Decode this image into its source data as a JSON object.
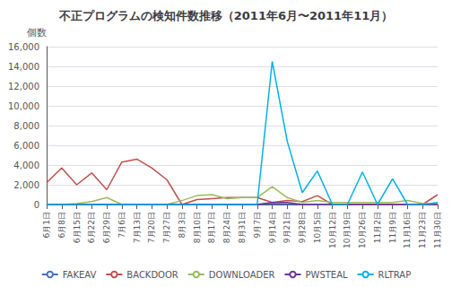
{
  "chart_data": {
    "type": "line",
    "title": "不正プログラムの検知件数推移（2011年6月〜2011年11月）",
    "ylabel": "個数",
    "categories": [
      "6月1日",
      "6月8日",
      "6月15日",
      "6月22日",
      "6月29日",
      "7月6日",
      "7月13日",
      "7月20日",
      "7月27日",
      "8月3日",
      "8月10日",
      "8月17日",
      "8月24日",
      "8月31日",
      "9月7日",
      "9月14日",
      "9月21日",
      "9月28日",
      "10月5日",
      "10月12日",
      "10月19日",
      "10月26日",
      "11月2日",
      "11月9日",
      "11月16日",
      "11月23日",
      "11月30日"
    ],
    "series": [
      {
        "name": "FAKEAV",
        "color": "#4472C4",
        "values": [
          0,
          0,
          0,
          0,
          0,
          0,
          0,
          0,
          0,
          0,
          0,
          0,
          0,
          0,
          0,
          100,
          50,
          0,
          0,
          0,
          0,
          0,
          0,
          0,
          0,
          0,
          0
        ]
      },
      {
        "name": "BACKDOOR",
        "color": "#C0504D",
        "values": [
          2200,
          3700,
          2000,
          3200,
          1500,
          4300,
          4600,
          3700,
          2500,
          0,
          500,
          600,
          700,
          700,
          700,
          200,
          400,
          300,
          900,
          0,
          0,
          0,
          0,
          0,
          0,
          0,
          1000
        ]
      },
      {
        "name": "DOWNLOADER",
        "color": "#9BBB59",
        "values": [
          0,
          0,
          100,
          300,
          700,
          0,
          0,
          0,
          0,
          400,
          900,
          1000,
          600,
          700,
          700,
          1800,
          700,
          200,
          400,
          200,
          200,
          200,
          200,
          200,
          400,
          100,
          100
        ]
      },
      {
        "name": "PWSTEAL",
        "color": "#7030A0",
        "values": [
          0,
          0,
          0,
          0,
          0,
          0,
          0,
          0,
          0,
          0,
          0,
          0,
          0,
          0,
          0,
          200,
          200,
          0,
          0,
          0,
          0,
          0,
          0,
          0,
          0,
          0,
          0
        ]
      },
      {
        "name": "RLTRAP",
        "color": "#00B0F0",
        "values": [
          0,
          0,
          0,
          0,
          0,
          0,
          0,
          0,
          0,
          0,
          0,
          0,
          0,
          0,
          0,
          14500,
          6400,
          1200,
          3400,
          0,
          0,
          3300,
          0,
          2600,
          0,
          0,
          200
        ]
      }
    ],
    "ylim": [
      0,
      16000
    ],
    "yticks": [
      0,
      {
        "value": 2000,
        "label": "2,000"
      },
      {
        "value": 4000,
        "label": "4,000"
      },
      {
        "value": 6000,
        "label": "6,000"
      },
      {
        "value": 8000,
        "label": "8,000"
      },
      {
        "value": 10000,
        "label": "10,000"
      },
      {
        "value": 12000,
        "label": "12,000"
      },
      {
        "value": 14000,
        "label": "14,000"
      },
      {
        "value": 16000,
        "label": "16,000"
      }
    ],
    "grid": true,
    "legend": "bottom"
  }
}
